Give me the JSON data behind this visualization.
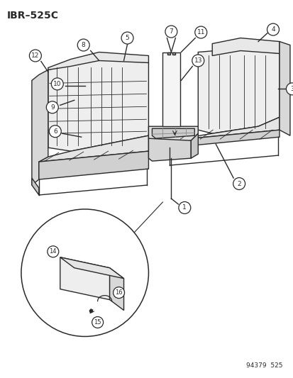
{
  "title": "IBR–525C",
  "footer": "94379  525",
  "background_color": "#ffffff",
  "line_color": "#2a2a2a",
  "figsize": [
    4.14,
    5.33
  ],
  "dpi": 100
}
